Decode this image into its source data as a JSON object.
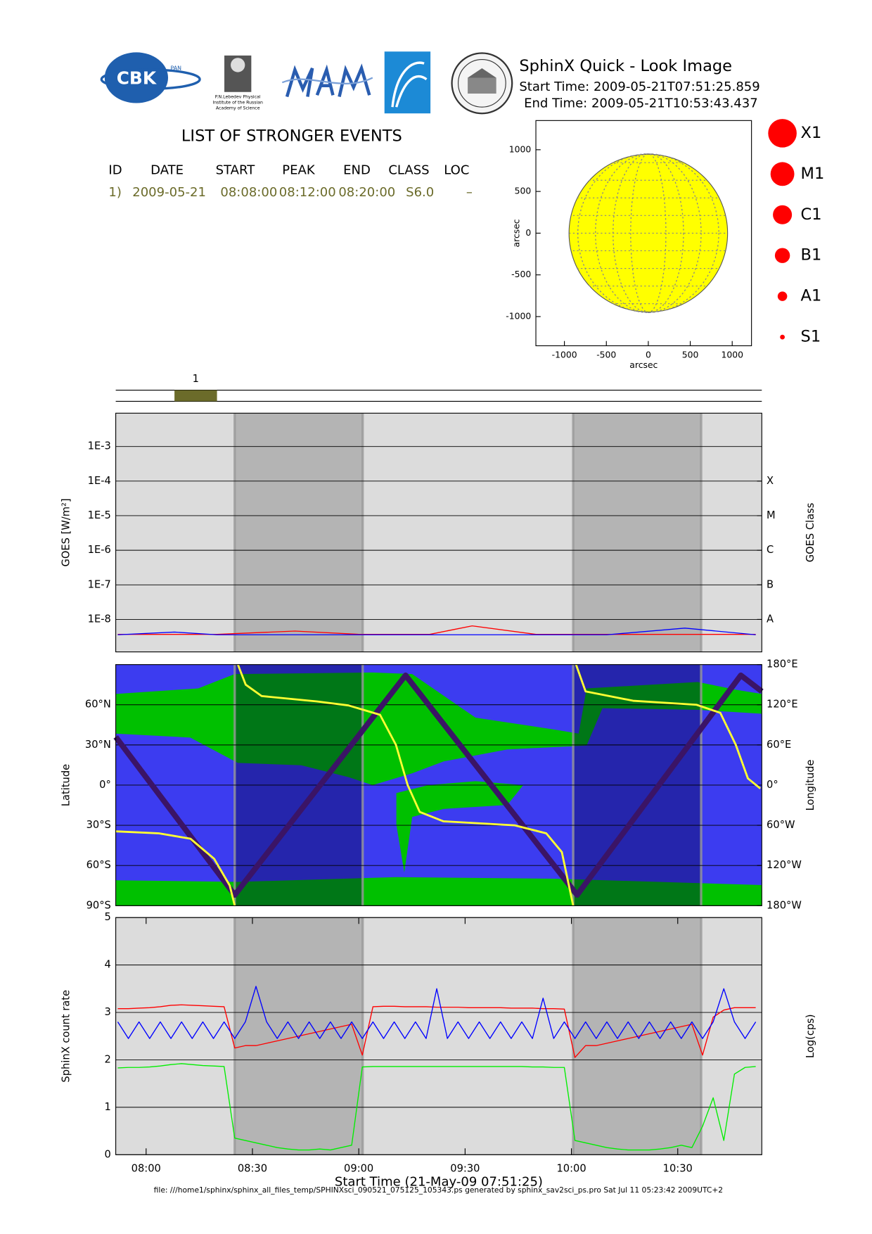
{
  "header": {
    "title": "SphinX Quick - Look Image",
    "start": "Start Time: 2009-05-21T07:51:25.859",
    "end": "End Time: 2009-05-21T10:53:43.437"
  },
  "logos": {
    "cbk": "CBK",
    "pan": "PAN",
    "lebedev": [
      "P.N.Lebedev Physical",
      "Institute of the Russian",
      "Academy of Science"
    ]
  },
  "events": {
    "title": "LIST OF STRONGER EVENTS",
    "columns": [
      "ID",
      "DATE",
      "START",
      "PEAK",
      "END",
      "CLASS",
      "LOC"
    ],
    "rows": [
      [
        "1)",
        "2009-05-21",
        "08:08:00",
        "08:12:00",
        "08:20:00",
        "S6.0",
        "–"
      ]
    ],
    "row_color": "#6b6b2a"
  },
  "goes_classes": {
    "labels": [
      "X1",
      "M1",
      "C1",
      "B1",
      "A1",
      "S1"
    ],
    "color": "#ff0000"
  },
  "shading": [
    [
      505,
      541.1
    ],
    [
      600.5,
      636.6
    ]
  ],
  "footer": "file: ///home1/sphinx/sphinx_all_files_temp/SPHINXsci_090521_075125_105343.ps generated by sphinx_sav2sci_ps.pro Sat Jul 11 05:23:42 2009UTC+2",
  "chart_data": [
    {
      "type": "disk",
      "xlabel": "arcsec",
      "ylabel": "arcsec",
      "xlim": [
        -1340,
        1230
      ],
      "ylim": [
        -1350,
        1350
      ],
      "xticks": [
        -1000,
        -500,
        0,
        500,
        1000
      ],
      "yticks": [
        -1000,
        -500,
        0,
        500,
        1000
      ],
      "radius": 945,
      "color": "#ffff00"
    },
    {
      "type": "timeline",
      "xlim": [
        471.43,
        653.72
      ],
      "color": "#6b6b2a",
      "events": [
        {
          "label": "1",
          "start": 488,
          "end": 500
        }
      ]
    },
    {
      "type": "line",
      "ylabel": "GOES [W/m²]",
      "y2label": "GOES Class",
      "log_y": true,
      "background": "#dcdcdc",
      "shade_color": "#b4b4b4",
      "xlim": [
        471.43,
        653.72
      ],
      "ylim": [
        1.15e-09,
        0.0092
      ],
      "yticks": [
        {
          "value": 1e-08,
          "label": "1E-8"
        },
        {
          "value": 1e-07,
          "label": "1E-7"
        },
        {
          "value": 1e-06,
          "label": "1E-6"
        },
        {
          "value": 1e-05,
          "label": "1E-5"
        },
        {
          "value": 0.0001,
          "label": "1E-4"
        },
        {
          "value": 0.001,
          "label": "1E-3"
        }
      ],
      "y2ticks": [
        {
          "value": 1e-08,
          "label": "A"
        },
        {
          "value": 1e-07,
          "label": "B"
        },
        {
          "value": 1e-06,
          "label": "C"
        },
        {
          "value": 1e-05,
          "label": "M"
        },
        {
          "value": 0.0001,
          "label": "X"
        }
      ],
      "x": [
        472,
        488,
        500,
        522,
        540,
        560,
        572,
        590,
        610,
        632,
        652
      ],
      "series": [
        {
          "color": "#ff0000",
          "values": [
            3.7e-09,
            3.7e-09,
            3.7e-09,
            4.6e-09,
            3.7e-09,
            3.7e-09,
            6.5e-09,
            3.7e-09,
            3.7e-09,
            3.7e-09,
            3.7e-09
          ]
        },
        {
          "color": "#0000ff",
          "values": [
            3.6e-09,
            4.3e-09,
            3.6e-09,
            3.6e-09,
            3.6e-09,
            3.6e-09,
            3.6e-09,
            3.6e-09,
            3.6e-09,
            5.6e-09,
            3.6e-09
          ]
        }
      ]
    },
    {
      "type": "line",
      "ylabel": "Latitude",
      "y2label": "Longitude",
      "background": "#3c3cf0",
      "shade_color": "rgba(0,0,60,0.38)",
      "xlim": [
        471.43,
        653.72
      ],
      "ylim": [
        -90,
        90
      ],
      "yticks": [
        {
          "value": -90,
          "label": "90°S"
        },
        {
          "value": -60,
          "label": "60°S"
        },
        {
          "value": -30,
          "label": "30°S"
        },
        {
          "value": 0,
          "label": "0°"
        },
        {
          "value": 30,
          "label": "30°N"
        },
        {
          "value": 60,
          "label": "60°N"
        }
      ],
      "y2lim": [
        -180,
        180
      ],
      "y2ticks": [
        {
          "value": -180,
          "label": "180°W"
        },
        {
          "value": -120,
          "label": "120°W"
        },
        {
          "value": -60,
          "label": "60°W"
        },
        {
          "value": 0,
          "label": "0°"
        },
        {
          "value": 60,
          "label": "60°E"
        },
        {
          "value": 120,
          "label": "120°E"
        },
        {
          "value": 180,
          "label": "180°E"
        }
      ],
      "series": [
        {
          "color": "#3b1466",
          "line_width": 7,
          "x": [
            471.43,
            505,
            553.2,
            601.6,
            647.8,
            653.72
          ],
          "values": [
            36,
            -82,
            82,
            -82,
            82,
            70
          ]
        },
        {
          "color": "#ffff33",
          "line_width": 2.5,
          "axis": "y2",
          "x": [
            471.5,
            483.6,
            492.5,
            499.2,
            503.6,
            505.0,
            505.5,
            505.9,
            508.1,
            512.6,
            528.2,
            537.1,
            546.0,
            550.5,
            553.8,
            557.2,
            563.9,
            584.0,
            592.9,
            597.3,
            600.5,
            600.9,
            601.3,
            604.0,
            617.4,
            635.3,
            642.0,
            646.4,
            649.8,
            653.3
          ],
          "values": [
            -69,
            -72,
            -80,
            -110,
            -150,
            -180,
            null,
            180,
            150,
            133,
            125,
            119,
            105,
            60,
            0,
            -40,
            -54,
            -60,
            -72,
            -100,
            -180,
            null,
            180,
            140,
            126,
            120,
            108,
            60,
            10,
            -5
          ]
        }
      ]
    },
    {
      "type": "line",
      "ylabel": "SphinX count rate",
      "y2label": "Log(cps)",
      "xlabel": "Start Time (21-May-09 07:51:25)",
      "background": "#dcdcdc",
      "shade_color": "#b4b4b4",
      "xlim": [
        471.43,
        653.72
      ],
      "ylim": [
        0,
        5
      ],
      "yticks": [
        0,
        1,
        2,
        3,
        4,
        5
      ],
      "xticks": [
        {
          "value": 480,
          "label": "08:00"
        },
        {
          "value": 510,
          "label": "08:30"
        },
        {
          "value": 540,
          "label": "09:00"
        },
        {
          "value": 570,
          "label": "09:30"
        },
        {
          "value": 600,
          "label": "10:00"
        },
        {
          "value": 630,
          "label": "10:30"
        }
      ],
      "x": [
        472,
        475,
        478,
        481,
        484,
        487,
        490,
        493,
        496,
        499,
        502,
        505,
        508,
        511,
        514,
        517,
        520,
        523,
        526,
        529,
        532,
        535,
        538,
        541,
        544,
        547,
        550,
        553,
        556,
        559,
        562,
        565,
        568,
        571,
        574,
        577,
        580,
        583,
        586,
        589,
        592,
        595,
        598,
        601,
        604,
        607,
        610,
        613,
        616,
        619,
        622,
        625,
        628,
        631,
        634,
        637,
        640,
        643,
        646,
        649,
        652
      ],
      "series": [
        {
          "color": "#ff0000",
          "values": [
            3.08,
            3.08,
            3.09,
            3.1,
            3.12,
            3.15,
            3.16,
            3.15,
            3.14,
            3.13,
            3.12,
            2.25,
            2.3,
            2.3,
            2.35,
            2.4,
            2.45,
            2.5,
            2.55,
            2.6,
            2.65,
            2.7,
            2.75,
            2.1,
            3.12,
            3.13,
            3.13,
            3.12,
            3.12,
            3.12,
            3.11,
            3.11,
            3.11,
            3.1,
            3.1,
            3.1,
            3.1,
            3.09,
            3.09,
            3.09,
            3.08,
            3.08,
            3.07,
            2.05,
            2.3,
            2.3,
            2.35,
            2.4,
            2.45,
            2.5,
            2.55,
            2.6,
            2.65,
            2.7,
            2.75,
            2.1,
            2.9,
            3.05,
            3.1,
            3.1,
            3.1
          ]
        },
        {
          "color": "#0000ff",
          "values": [
            2.8,
            2.45,
            2.8,
            2.45,
            2.8,
            2.45,
            2.8,
            2.45,
            2.8,
            2.45,
            2.8,
            2.45,
            2.8,
            3.55,
            2.8,
            2.45,
            2.8,
            2.45,
            2.8,
            2.45,
            2.8,
            2.45,
            2.8,
            2.45,
            2.8,
            2.45,
            2.8,
            2.45,
            2.8,
            2.45,
            3.5,
            2.45,
            2.8,
            2.45,
            2.8,
            2.45,
            2.8,
            2.45,
            2.8,
            2.45,
            3.3,
            2.45,
            2.8,
            2.45,
            2.8,
            2.45,
            2.8,
            2.45,
            2.8,
            2.45,
            2.8,
            2.45,
            2.8,
            2.45,
            2.8,
            2.45,
            2.8,
            3.5,
            2.8,
            2.45,
            2.8
          ]
        },
        {
          "color": "#00ee00",
          "values": [
            1.83,
            1.84,
            1.84,
            1.85,
            1.87,
            1.9,
            1.92,
            1.9,
            1.88,
            1.87,
            1.86,
            0.35,
            0.3,
            0.25,
            0.2,
            0.15,
            0.12,
            0.1,
            0.1,
            0.12,
            0.1,
            0.15,
            0.2,
            1.85,
            1.86,
            1.86,
            1.86,
            1.86,
            1.86,
            1.86,
            1.86,
            1.86,
            1.86,
            1.86,
            1.86,
            1.86,
            1.86,
            1.86,
            1.86,
            1.85,
            1.85,
            1.84,
            1.84,
            0.3,
            0.25,
            0.2,
            0.15,
            0.12,
            0.1,
            0.1,
            0.1,
            0.12,
            0.15,
            0.2,
            0.15,
            0.6,
            1.2,
            0.3,
            1.7,
            1.84,
            1.86
          ]
        }
      ]
    }
  ]
}
